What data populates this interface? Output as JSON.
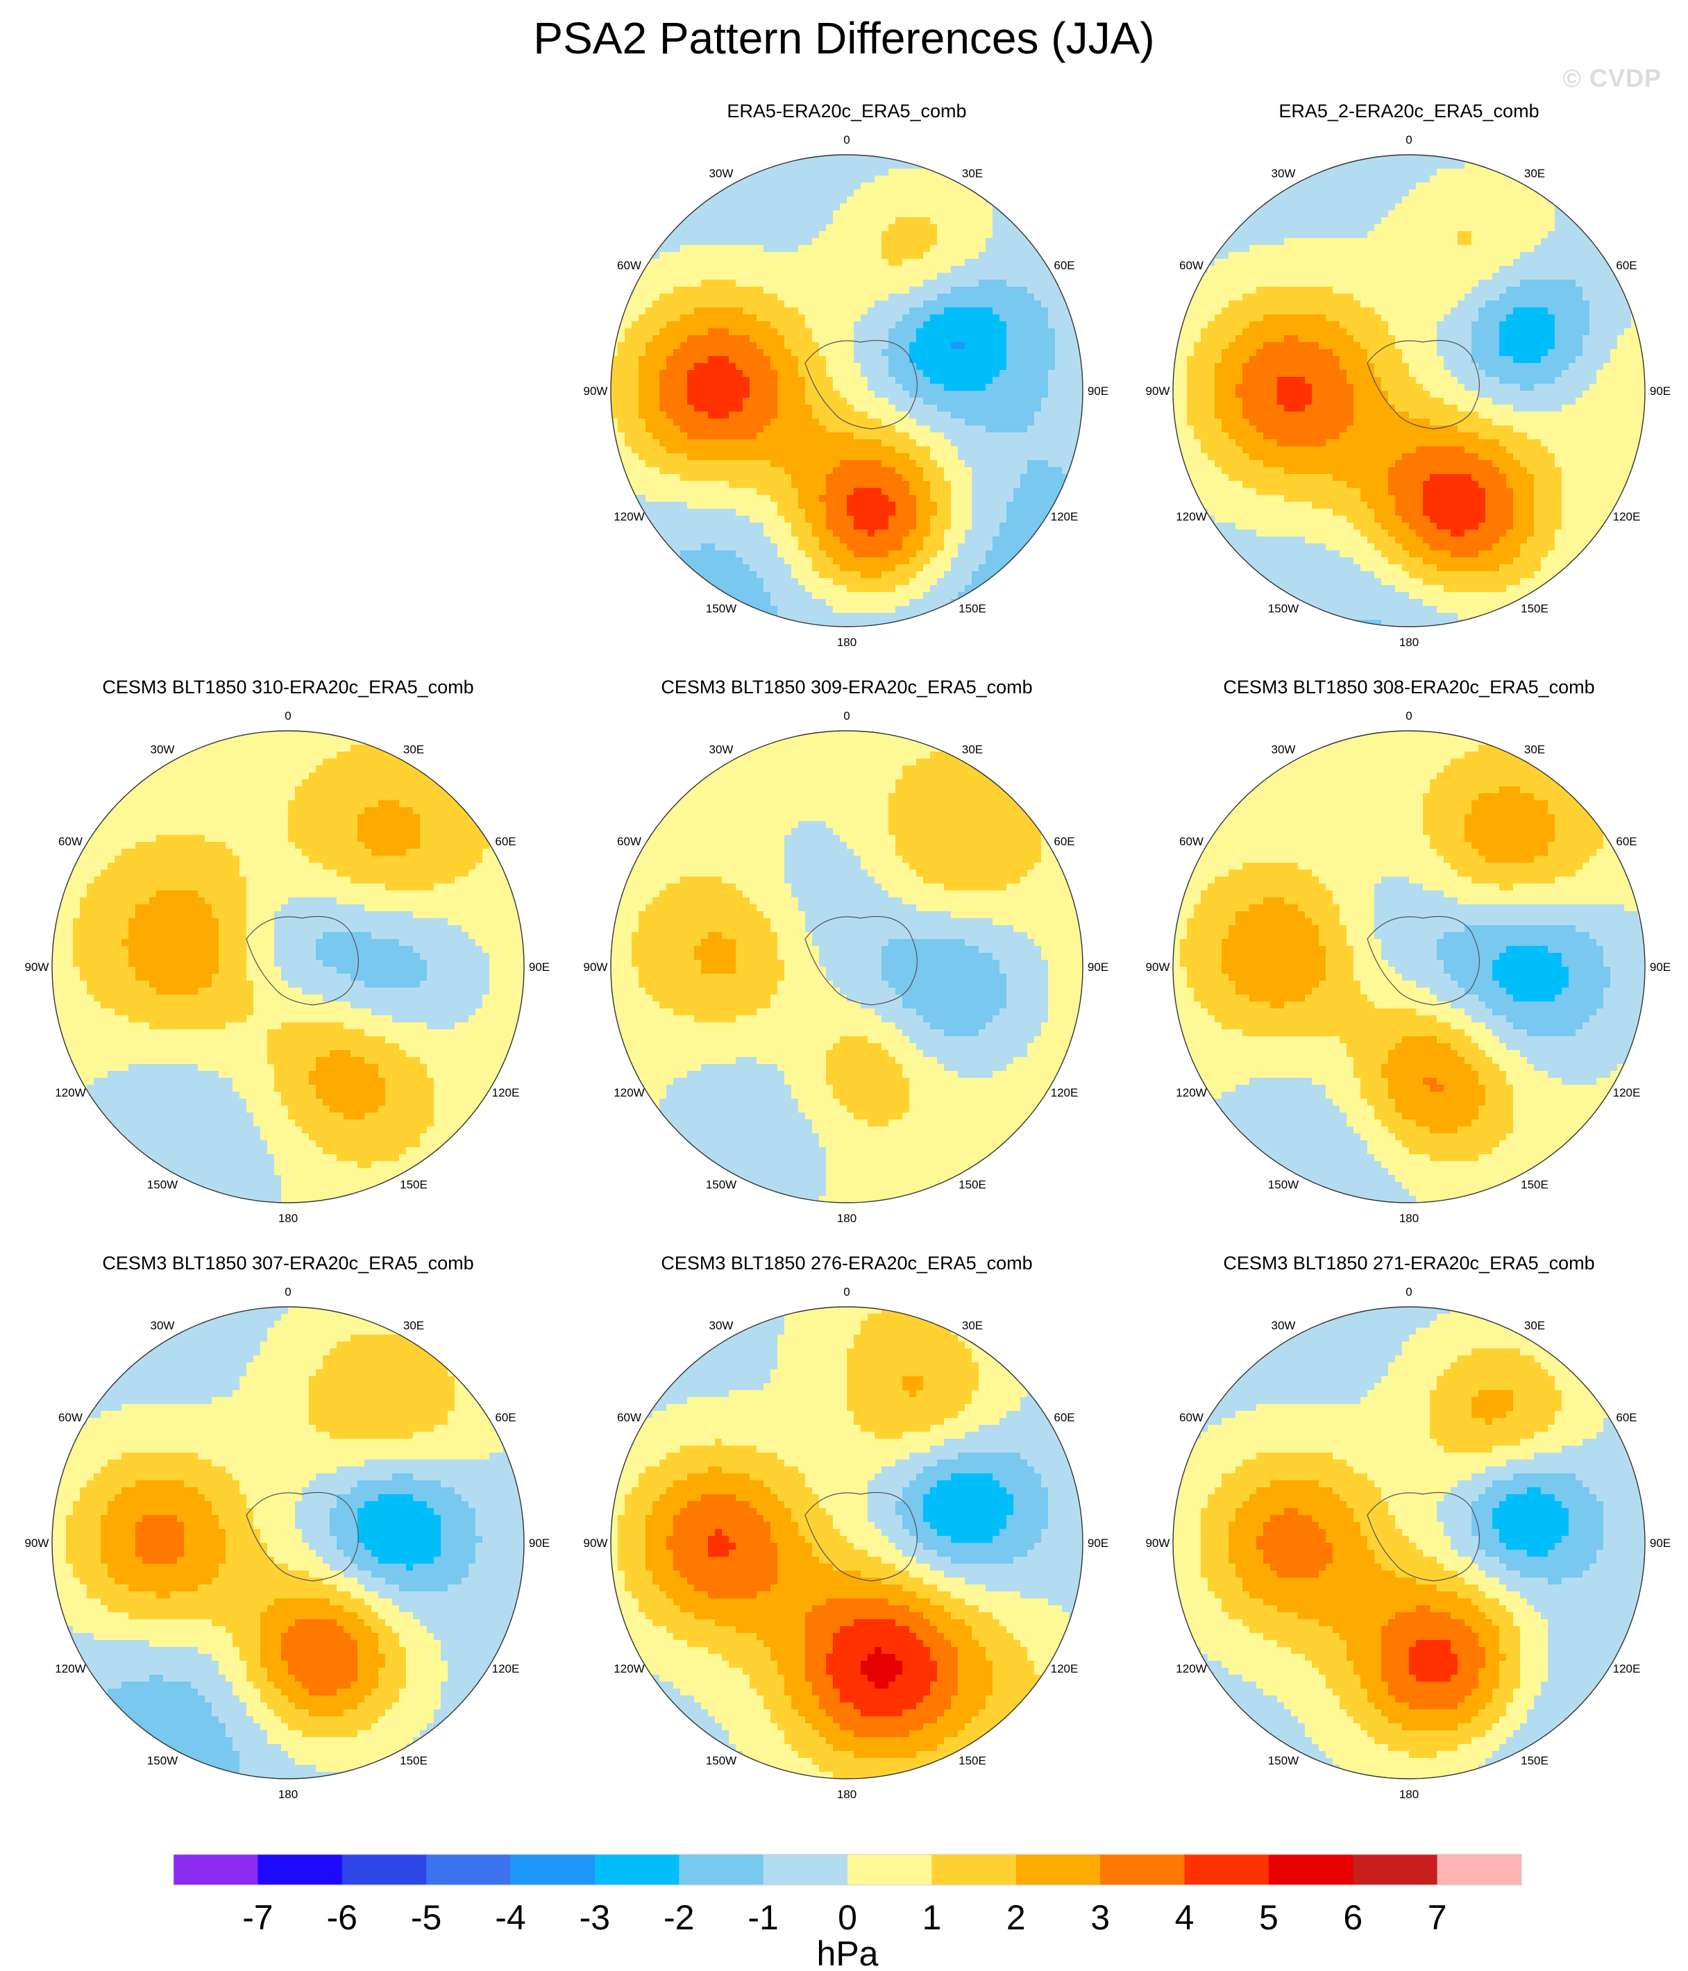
{
  "figure": {
    "title": "PSA2 Pattern Differences (JJA)",
    "watermark": "© CVDP"
  },
  "colorbar": {
    "units": "hPa",
    "ticks": [
      "-7",
      "-6",
      "-5",
      "-4",
      "-3",
      "-2",
      "-1",
      "0",
      "1",
      "2",
      "3",
      "4",
      "5",
      "6",
      "7"
    ],
    "colors": [
      "#8a2cf0",
      "#1e0afc",
      "#2c46e8",
      "#3a72f0",
      "#1e96fa",
      "#00befa",
      "#78c8f0",
      "#b4dcf0",
      "#fff896",
      "#ffd232",
      "#ffaa00",
      "#ff7800",
      "#ff3200",
      "#e60000",
      "#c81e1e",
      "#ffb4b4"
    ]
  },
  "map_labels": [
    "0",
    "30E",
    "60E",
    "90E",
    "120E",
    "150E",
    "180",
    "150W",
    "120W",
    "90W",
    "60W",
    "30W"
  ],
  "chart_data": [
    {
      "type": "heatmap",
      "projection": "south-polar-stereographic",
      "title": "ERA5-ERA20c_ERA5_comb",
      "units": "hPa",
      "levels": [
        -7,
        -6,
        -5,
        -4,
        -3,
        -2,
        -1,
        0,
        1,
        2,
        3,
        4,
        5,
        6,
        7
      ],
      "background_anomaly": -0.6,
      "anomalies": [
        {
          "lon": 30,
          "colat": 0.62,
          "value": 2.6,
          "spread": 0.24
        },
        {
          "lon": -90,
          "colat": 0.55,
          "value": 5.2,
          "spread": 0.3
        },
        {
          "lon": 60,
          "colat": 0.5,
          "value": -3.3,
          "spread": 0.22
        },
        {
          "lon": 168,
          "colat": 0.55,
          "value": 6.2,
          "spread": 0.27
        },
        {
          "lon": 150,
          "colat": 0.9,
          "value": -1.6,
          "spread": 0.4
        },
        {
          "lon": -150,
          "colat": 0.75,
          "value": -1.2,
          "spread": 0.35
        }
      ]
    },
    {
      "type": "heatmap",
      "projection": "south-polar-stereographic",
      "title": "ERA5_2-ERA20c_ERA5_comb",
      "units": "hPa",
      "levels": [
        -7,
        -6,
        -5,
        -4,
        -3,
        -2,
        -1,
        0,
        1,
        2,
        3,
        4,
        5,
        6,
        7
      ],
      "background_anomaly": -0.5,
      "anomalies": [
        {
          "lon": 30,
          "colat": 0.62,
          "value": 2.2,
          "spread": 0.25
        },
        {
          "lon": -90,
          "colat": 0.5,
          "value": 4.6,
          "spread": 0.3
        },
        {
          "lon": 60,
          "colat": 0.55,
          "value": -3.2,
          "spread": 0.22
        },
        {
          "lon": 160,
          "colat": 0.55,
          "value": 5.6,
          "spread": 0.28
        },
        {
          "lon": 90,
          "colat": 0.98,
          "value": 1.3,
          "spread": 0.3
        },
        {
          "lon": 180,
          "colat": 0.85,
          "value": -1.5,
          "spread": 0.3
        }
      ]
    },
    {
      "type": "heatmap",
      "projection": "south-polar-stereographic",
      "title": "CESM3 BLT1850 310-ERA20c_ERA5_comb",
      "units": "hPa",
      "levels": [
        -7,
        -6,
        -5,
        -4,
        -3,
        -2,
        -1,
        0,
        1,
        2,
        3,
        4,
        5,
        6,
        7
      ],
      "background_anomaly": 0.5,
      "anomalies": [
        {
          "lon": 40,
          "colat": 0.65,
          "value": 2.1,
          "spread": 0.27
        },
        {
          "lon": -80,
          "colat": 0.45,
          "value": 2.4,
          "spread": 0.27
        },
        {
          "lon": 90,
          "colat": 0.4,
          "value": -2.6,
          "spread": 0.27
        },
        {
          "lon": 150,
          "colat": 0.5,
          "value": 2.6,
          "spread": 0.25
        },
        {
          "lon": -150,
          "colat": 0.85,
          "value": -1.5,
          "spread": 0.35
        },
        {
          "lon": 0,
          "colat": 0.15,
          "value": -1.2,
          "spread": 0.2
        }
      ]
    },
    {
      "type": "heatmap",
      "projection": "south-polar-stereographic",
      "title": "CESM3 BLT1850 309-ERA20c_ERA5_comb",
      "units": "hPa",
      "levels": [
        -7,
        -6,
        -5,
        -4,
        -3,
        -2,
        -1,
        0,
        1,
        2,
        3,
        4,
        5,
        6,
        7
      ],
      "background_anomaly": 0.6,
      "anomalies": [
        {
          "lon": 40,
          "colat": 0.65,
          "value": 1.8,
          "spread": 0.25
        },
        {
          "lon": -85,
          "colat": 0.5,
          "value": 2.0,
          "spread": 0.24
        },
        {
          "lon": 100,
          "colat": 0.45,
          "value": -2.5,
          "spread": 0.25
        },
        {
          "lon": 170,
          "colat": 0.45,
          "value": 1.8,
          "spread": 0.2
        },
        {
          "lon": -150,
          "colat": 0.75,
          "value": -1.3,
          "spread": 0.35
        },
        {
          "lon": -10,
          "colat": 0.3,
          "value": -1.4,
          "spread": 0.3
        }
      ]
    },
    {
      "type": "heatmap",
      "projection": "south-polar-stereographic",
      "title": "CESM3 BLT1850 308-ERA20c_ERA5_comb",
      "units": "hPa",
      "levels": [
        -7,
        -6,
        -5,
        -4,
        -3,
        -2,
        -1,
        0,
        1,
        2,
        3,
        4,
        5,
        6,
        7
      ],
      "background_anomaly": 0.3,
      "anomalies": [
        {
          "lon": 40,
          "colat": 0.65,
          "value": 2.8,
          "spread": 0.27
        },
        {
          "lon": -85,
          "colat": 0.55,
          "value": 2.8,
          "spread": 0.25
        },
        {
          "lon": 90,
          "colat": 0.5,
          "value": -3.2,
          "spread": 0.27
        },
        {
          "lon": 170,
          "colat": 0.5,
          "value": 3.6,
          "spread": 0.25
        },
        {
          "lon": -160,
          "colat": 0.8,
          "value": -1.5,
          "spread": 0.35
        },
        {
          "lon": 0,
          "colat": 0.2,
          "value": -1.2,
          "spread": 0.25
        }
      ]
    },
    {
      "type": "heatmap",
      "projection": "south-polar-stereographic",
      "title": "CESM3 BLT1850 307-ERA20c_ERA5_comb",
      "units": "hPa",
      "levels": [
        -7,
        -6,
        -5,
        -4,
        -3,
        -2,
        -1,
        0,
        1,
        2,
        3,
        4,
        5,
        6,
        7
      ],
      "background_anomaly": -0.4,
      "anomalies": [
        {
          "lon": 35,
          "colat": 0.7,
          "value": 2.5,
          "spread": 0.3
        },
        {
          "lon": -90,
          "colat": 0.55,
          "value": 3.8,
          "spread": 0.28
        },
        {
          "lon": 80,
          "colat": 0.45,
          "value": -3.3,
          "spread": 0.22
        },
        {
          "lon": 165,
          "colat": 0.5,
          "value": 4.6,
          "spread": 0.25
        },
        {
          "lon": -150,
          "colat": 0.85,
          "value": -1.4,
          "spread": 0.35
        }
      ]
    },
    {
      "type": "heatmap",
      "projection": "south-polar-stereographic",
      "title": "CESM3 BLT1850 276-ERA20c_ERA5_comb",
      "units": "hPa",
      "levels": [
        -7,
        -6,
        -5,
        -4,
        -3,
        -2,
        -1,
        0,
        1,
        2,
        3,
        4,
        5,
        6,
        7
      ],
      "background_anomaly": -0.4,
      "anomalies": [
        {
          "lon": 30,
          "colat": 0.65,
          "value": 2.2,
          "spread": 0.25
        },
        {
          "lon": -90,
          "colat": 0.55,
          "value": 4.4,
          "spread": 0.28
        },
        {
          "lon": 70,
          "colat": 0.5,
          "value": -3.2,
          "spread": 0.22
        },
        {
          "lon": 165,
          "colat": 0.55,
          "value": 5.5,
          "spread": 0.3
        },
        {
          "lon": 10,
          "colat": 0.95,
          "value": 1.0,
          "spread": 0.3
        },
        {
          "lon": 130,
          "colat": 0.98,
          "value": 1.0,
          "spread": 0.25
        }
      ]
    },
    {
      "type": "heatmap",
      "projection": "south-polar-stereographic",
      "title": "CESM3 BLT1850 271-ERA20c_ERA5_comb",
      "units": "hPa",
      "levels": [
        -7,
        -6,
        -5,
        -4,
        -3,
        -2,
        -1,
        0,
        1,
        2,
        3,
        4,
        5,
        6,
        7
      ],
      "background_anomaly": -0.4,
      "anomalies": [
        {
          "lon": 35,
          "colat": 0.65,
          "value": 2.8,
          "spread": 0.25
        },
        {
          "lon": -90,
          "colat": 0.5,
          "value": 3.8,
          "spread": 0.28
        },
        {
          "lon": 75,
          "colat": 0.5,
          "value": -3.1,
          "spread": 0.2
        },
        {
          "lon": 165,
          "colat": 0.55,
          "value": 5.5,
          "spread": 0.28
        },
        {
          "lon": 150,
          "colat": 0.85,
          "value": -1.5,
          "spread": 0.35
        }
      ]
    }
  ]
}
